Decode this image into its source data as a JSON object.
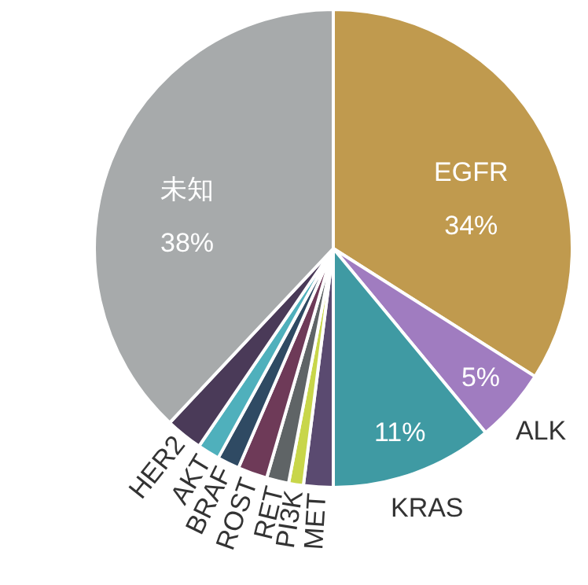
{
  "chart_data": {
    "type": "pie",
    "categories": [
      "EGFR",
      "ALK",
      "KRAS",
      "MET",
      "PI3K",
      "RET",
      "ROST",
      "BRAF",
      "AKT",
      "HER2",
      "未知"
    ],
    "values": [
      34,
      5,
      11,
      2,
      1,
      1.5,
      2,
      1.5,
      1.5,
      2.5,
      38
    ],
    "colors": [
      "#c09a4e",
      "#a07cc0",
      "#3f9aa3",
      "#5a4a70",
      "#c8d64a",
      "#5f6466",
      "#6e3a58",
      "#2f4a63",
      "#4fb0bc",
      "#4a3a58",
      "#a7aaab"
    ],
    "value_labels": [
      "34%",
      "5%",
      "11%",
      null,
      null,
      null,
      null,
      null,
      null,
      null,
      "38%"
    ]
  }
}
